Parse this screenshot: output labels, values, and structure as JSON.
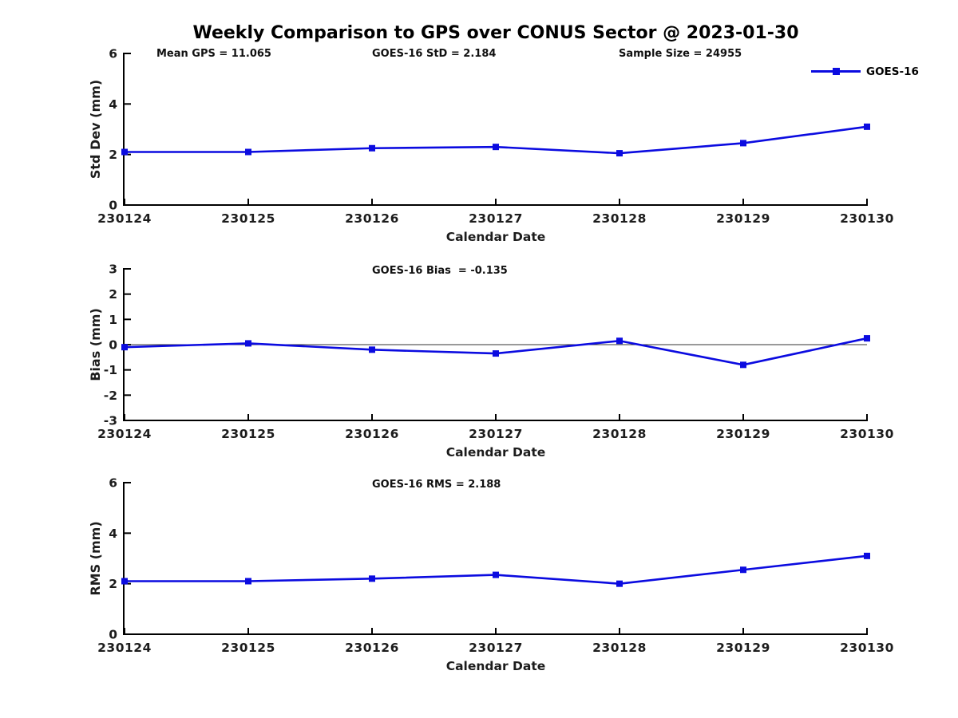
{
  "title": "Weekly Comparison to GPS over CONUS Sector @ 2023-01-30",
  "header_stats": {
    "mean_gps": "Mean GPS = 11.065",
    "goes16_std": "GOES-16 StD = 2.184",
    "sample_size": "Sample Size = 24955"
  },
  "legend": {
    "label": "GOES-16",
    "position": "top-right"
  },
  "colors": {
    "series": "#0b0be0",
    "axis": "#000000",
    "tick_text": "#1c1c1c",
    "zero_line": "#333333"
  },
  "chart_data": [
    {
      "id": "stddev",
      "type": "line",
      "series_name": "GOES-16",
      "categories": [
        "230124",
        "230125",
        "230126",
        "230127",
        "230128",
        "230129",
        "230130"
      ],
      "values": [
        2.1,
        2.1,
        2.25,
        2.3,
        2.05,
        2.45,
        3.1
      ],
      "xlabel": "Calendar Date",
      "ylabel": "Std Dev (mm)",
      "ylim": [
        0,
        6
      ],
      "yticks": [
        0,
        2,
        4,
        6
      ],
      "grid": false,
      "legend_position": "top-right",
      "annotations": [
        "Mean GPS = 11.065",
        "GOES-16 StD = 2.184",
        "Sample Size = 24955"
      ]
    },
    {
      "id": "bias",
      "type": "line",
      "series_name": "GOES-16",
      "categories": [
        "230124",
        "230125",
        "230126",
        "230127",
        "230128",
        "230129",
        "230130"
      ],
      "values": [
        -0.1,
        0.05,
        -0.2,
        -0.35,
        0.15,
        -0.8,
        0.25
      ],
      "xlabel": "Calendar Date",
      "ylabel": "Bias (mm)",
      "ylim": [
        -3,
        3
      ],
      "yticks": [
        3,
        2,
        1,
        0,
        -1,
        -2,
        -3
      ],
      "grid": false,
      "zero_line": true,
      "annotation": "GOES-16 Bias  = -0.135"
    },
    {
      "id": "rms",
      "type": "line",
      "series_name": "GOES-16",
      "categories": [
        "230124",
        "230125",
        "230126",
        "230127",
        "230128",
        "230129",
        "230130"
      ],
      "values": [
        2.1,
        2.1,
        2.2,
        2.35,
        2.0,
        2.55,
        3.1
      ],
      "xlabel": "Calendar Date",
      "ylabel": "RMS (mm)",
      "ylim": [
        0,
        6
      ],
      "yticks": [
        0,
        2,
        4,
        6
      ],
      "grid": false,
      "annotation": "GOES-16 RMS = 2.188"
    }
  ]
}
